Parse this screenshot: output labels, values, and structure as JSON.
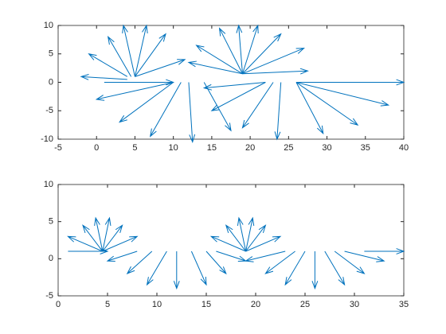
{
  "chart_data": [
    {
      "type": "quiver",
      "color": "#0072bd",
      "xlim": [
        -5,
        40
      ],
      "ylim": [
        -10,
        10
      ],
      "xticks": [
        -5,
        0,
        5,
        10,
        15,
        20,
        25,
        30,
        35,
        40
      ],
      "yticks": [
        -10,
        -5,
        0,
        5,
        10
      ],
      "x": [
        1,
        4,
        4,
        4.5,
        5,
        5,
        5,
        5,
        10,
        10,
        11,
        12,
        14,
        19,
        19,
        19,
        19,
        19,
        19,
        19,
        19,
        22,
        22,
        23,
        24,
        26,
        26,
        26,
        26
      ],
      "y": [
        0,
        0.5,
        1,
        1,
        1,
        1,
        1,
        1,
        0,
        0,
        0,
        0,
        0,
        1.5,
        1.5,
        1.5,
        1.5,
        1.5,
        1.5,
        1.5,
        1.5,
        0,
        0,
        0,
        0,
        0,
        0,
        0,
        0
      ],
      "u": [
        9,
        -6,
        -5,
        -3,
        -1.5,
        1.5,
        4,
        6.5,
        -10,
        -7,
        -4,
        0.5,
        3.5,
        -7,
        -6,
        -3,
        -0.5,
        2,
        5,
        8,
        8.5,
        -8,
        -7,
        -4,
        -0.5,
        3.5,
        8,
        12,
        14
      ],
      "v": [
        0,
        0.5,
        4,
        7,
        9,
        9,
        7.5,
        3,
        -3,
        -7,
        -9.5,
        -10.5,
        -8.5,
        2,
        5,
        8,
        8.5,
        8.5,
        7,
        4.5,
        0.5,
        -1,
        -5,
        -8,
        -10,
        -9,
        -7.5,
        -4,
        0
      ]
    },
    {
      "type": "quiver",
      "color": "#0072bd",
      "xlim": [
        0,
        35
      ],
      "ylim": [
        -5,
        10
      ],
      "xticks": [
        0,
        5,
        10,
        15,
        20,
        25,
        30,
        35
      ],
      "yticks": [
        -5,
        0,
        5,
        10
      ],
      "x": [
        1,
        4.5,
        4.5,
        4.5,
        4.5,
        4.5,
        4.5,
        8,
        9.5,
        11,
        12,
        13.5,
        15,
        16,
        19,
        19,
        19,
        19,
        19,
        19,
        23,
        24,
        25,
        26,
        27,
        28,
        29,
        31
      ],
      "y": [
        1,
        1,
        1,
        1,
        1,
        1,
        1,
        1,
        1,
        1,
        1,
        1,
        1,
        1,
        1,
        1,
        1,
        1,
        1,
        1,
        1,
        1,
        1,
        1,
        1,
        1,
        1,
        1
      ],
      "u": [
        4,
        -3.5,
        -2,
        -0.7,
        0.7,
        2,
        3.5,
        -3,
        -2.5,
        -2,
        0,
        1.5,
        2,
        3,
        -3.5,
        -2,
        -0.7,
        0.7,
        2,
        3.5,
        -4,
        -3,
        -2,
        0,
        2,
        3,
        4,
        4
      ],
      "v": [
        0,
        2,
        3.5,
        4.5,
        4.5,
        3.5,
        2,
        -1.3,
        -3,
        -4.5,
        -5,
        -4.5,
        -3,
        -1.3,
        2,
        3.5,
        4.5,
        4.5,
        3.5,
        2,
        -1.3,
        -3,
        -4.5,
        -5,
        -4.5,
        -3,
        -1.3,
        0
      ]
    }
  ]
}
